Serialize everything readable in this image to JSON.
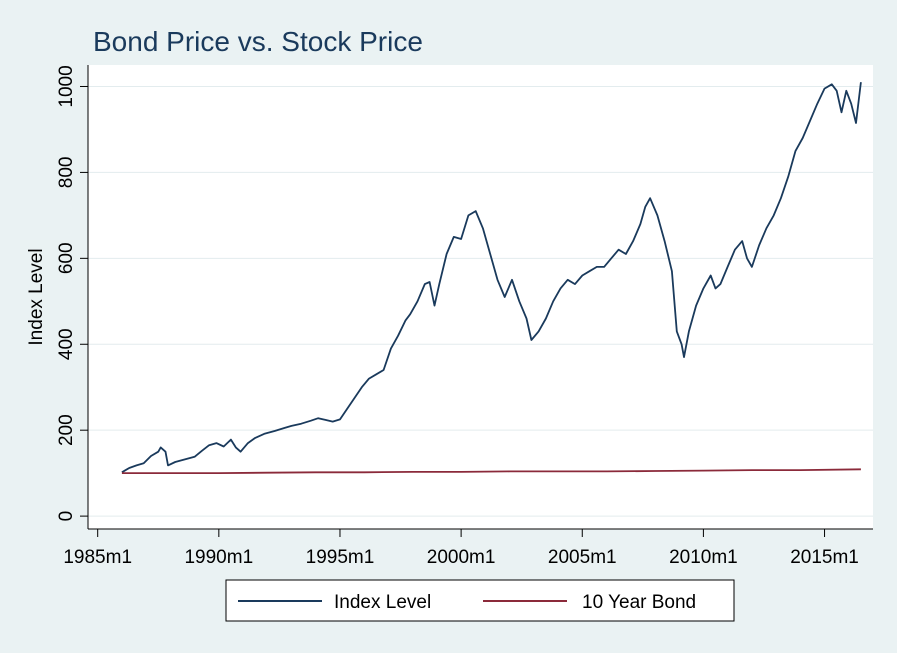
{
  "chart_data": {
    "type": "line",
    "title": "Bond Price vs. Stock Price",
    "ylabel": "Index Level",
    "xlabel": "",
    "xlim": [
      1984.6,
      2017.0
    ],
    "ylim": [
      -30,
      1050
    ],
    "grid": true,
    "legend_position": "bottom",
    "x_ticks": [
      {
        "value": 1985,
        "label": "1985m1"
      },
      {
        "value": 1990,
        "label": "1990m1"
      },
      {
        "value": 1995,
        "label": "1995m1"
      },
      {
        "value": 2000,
        "label": "2000m1"
      },
      {
        "value": 2005,
        "label": "2005m1"
      },
      {
        "value": 2010,
        "label": "2010m1"
      },
      {
        "value": 2015,
        "label": "2015m1"
      }
    ],
    "y_ticks": [
      {
        "value": 0,
        "label": "0"
      },
      {
        "value": 200,
        "label": "200"
      },
      {
        "value": 400,
        "label": "400"
      },
      {
        "value": 600,
        "label": "600"
      },
      {
        "value": 800,
        "label": "800"
      },
      {
        "value": 1000,
        "label": "1000"
      }
    ],
    "series": [
      {
        "name": "Index Level",
        "color": "#1a3a5c",
        "x": [
          1986.0,
          1986.3,
          1986.6,
          1986.9,
          1987.2,
          1987.5,
          1987.6,
          1987.8,
          1987.9,
          1988.2,
          1988.6,
          1989.0,
          1989.3,
          1989.6,
          1989.9,
          1990.2,
          1990.5,
          1990.7,
          1990.9,
          1991.2,
          1991.5,
          1991.9,
          1992.3,
          1992.7,
          1993.0,
          1993.4,
          1993.8,
          1994.1,
          1994.4,
          1994.7,
          1995.0,
          1995.3,
          1995.6,
          1995.9,
          1996.2,
          1996.5,
          1996.8,
          1997.1,
          1997.4,
          1997.7,
          1997.9,
          1998.2,
          1998.5,
          1998.7,
          1998.9,
          1999.1,
          1999.4,
          1999.7,
          2000.0,
          2000.3,
          2000.6,
          2000.9,
          2001.2,
          2001.5,
          2001.8,
          2002.1,
          2002.4,
          2002.7,
          2002.9,
          2003.2,
          2003.5,
          2003.8,
          2004.1,
          2004.4,
          2004.7,
          2005.0,
          2005.3,
          2005.6,
          2005.9,
          2006.2,
          2006.5,
          2006.8,
          2007.1,
          2007.4,
          2007.6,
          2007.8,
          2008.1,
          2008.4,
          2008.7,
          2008.9,
          2009.1,
          2009.2,
          2009.4,
          2009.7,
          2010.0,
          2010.3,
          2010.5,
          2010.7,
          2011.0,
          2011.3,
          2011.6,
          2011.8,
          2012.0,
          2012.3,
          2012.6,
          2012.9,
          2013.2,
          2013.5,
          2013.8,
          2014.1,
          2014.4,
          2014.7,
          2015.0,
          2015.3,
          2015.5,
          2015.7,
          2015.9,
          2016.1,
          2016.3,
          2016.5
        ],
        "values": [
          102,
          112,
          118,
          123,
          140,
          150,
          160,
          150,
          118,
          126,
          132,
          138,
          152,
          165,
          170,
          162,
          178,
          160,
          150,
          170,
          182,
          192,
          198,
          205,
          210,
          215,
          222,
          228,
          224,
          220,
          225,
          250,
          275,
          300,
          320,
          330,
          340,
          390,
          420,
          455,
          470,
          500,
          540,
          545,
          490,
          540,
          610,
          650,
          645,
          700,
          710,
          670,
          610,
          550,
          510,
          550,
          500,
          460,
          410,
          430,
          460,
          500,
          530,
          550,
          540,
          560,
          570,
          580,
          580,
          600,
          620,
          610,
          640,
          680,
          720,
          740,
          700,
          640,
          570,
          430,
          400,
          370,
          430,
          490,
          530,
          560,
          530,
          540,
          580,
          620,
          640,
          600,
          580,
          630,
          670,
          700,
          740,
          790,
          850,
          880,
          920,
          960,
          995,
          1005,
          990,
          940,
          990,
          960,
          915,
          1010
        ]
      },
      {
        "name": "10 Year Bond",
        "color": "#8b2a3a",
        "x": [
          1986.0,
          1988.0,
          1990.0,
          1992.0,
          1994.0,
          1996.0,
          1998.0,
          2000.0,
          2002.0,
          2004.0,
          2006.0,
          2008.0,
          2010.0,
          2012.0,
          2014.0,
          2016.5
        ],
        "values": [
          100,
          100,
          100,
          101,
          102,
          102,
          103,
          103,
          104,
          104,
          104,
          105,
          106,
          107,
          107,
          109
        ]
      }
    ]
  }
}
